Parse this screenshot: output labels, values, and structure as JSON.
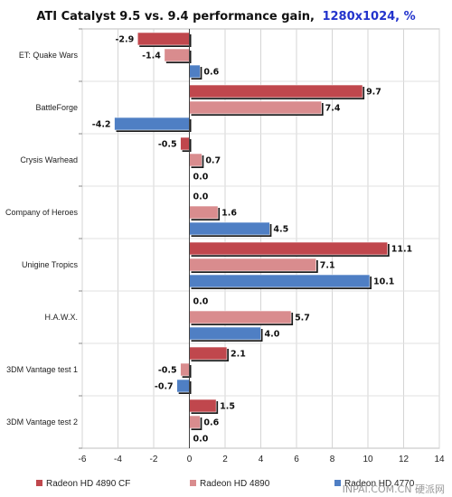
{
  "chart_data": {
    "type": "bar",
    "orientation": "horizontal",
    "title": "ATI Catalyst 9.5 vs. 9.4 performance gain,",
    "title_highlight": "1280x1024, %",
    "categories": [
      "ET: Quake Wars",
      "BattleForge",
      "Crysis Warhead",
      "Company of Heroes",
      "Unigine Tropics",
      "H.A.W.X.",
      "3DM Vantage test 1",
      "3DM Vantage test 2"
    ],
    "series": [
      {
        "name": "Radeon HD 4890 CF",
        "color": "#c0474d",
        "values": [
          -2.9,
          9.7,
          -0.5,
          0.0,
          11.1,
          0.0,
          2.1,
          1.5
        ]
      },
      {
        "name": "Radeon HD 4890",
        "color": "#d98c8e",
        "values": [
          -1.4,
          7.4,
          0.7,
          1.6,
          7.1,
          5.7,
          -0.5,
          0.6
        ]
      },
      {
        "name": "Radeon HD 4770",
        "color": "#4f7fc4",
        "values": [
          0.6,
          -4.2,
          0.0,
          4.5,
          10.1,
          4.0,
          -0.7,
          0.0
        ]
      }
    ],
    "value_labels": {
      "Radeon HD 4890 CF": [
        "-2.9",
        "9.7",
        "-0.5",
        "0.0",
        "11.1",
        "0.0",
        "2.1",
        "1.5"
      ],
      "Radeon HD 4890": [
        "-1.4",
        "7.4",
        "0.7",
        "1.6",
        "7.1",
        "5.7",
        "-0.5",
        "0.6"
      ],
      "Radeon HD 4770": [
        "0.6",
        "-4.2",
        "0.0",
        "4.5",
        "10.1",
        "4.0",
        "-0.7",
        "0.0"
      ]
    },
    "xlim": [
      -6,
      14
    ],
    "xticks": [
      -6,
      -4,
      -2,
      0,
      2,
      4,
      6,
      8,
      10,
      12,
      14
    ],
    "grid": true,
    "legend_position": "bottom"
  },
  "watermark": "INPAI.COM.CN 硬派网"
}
